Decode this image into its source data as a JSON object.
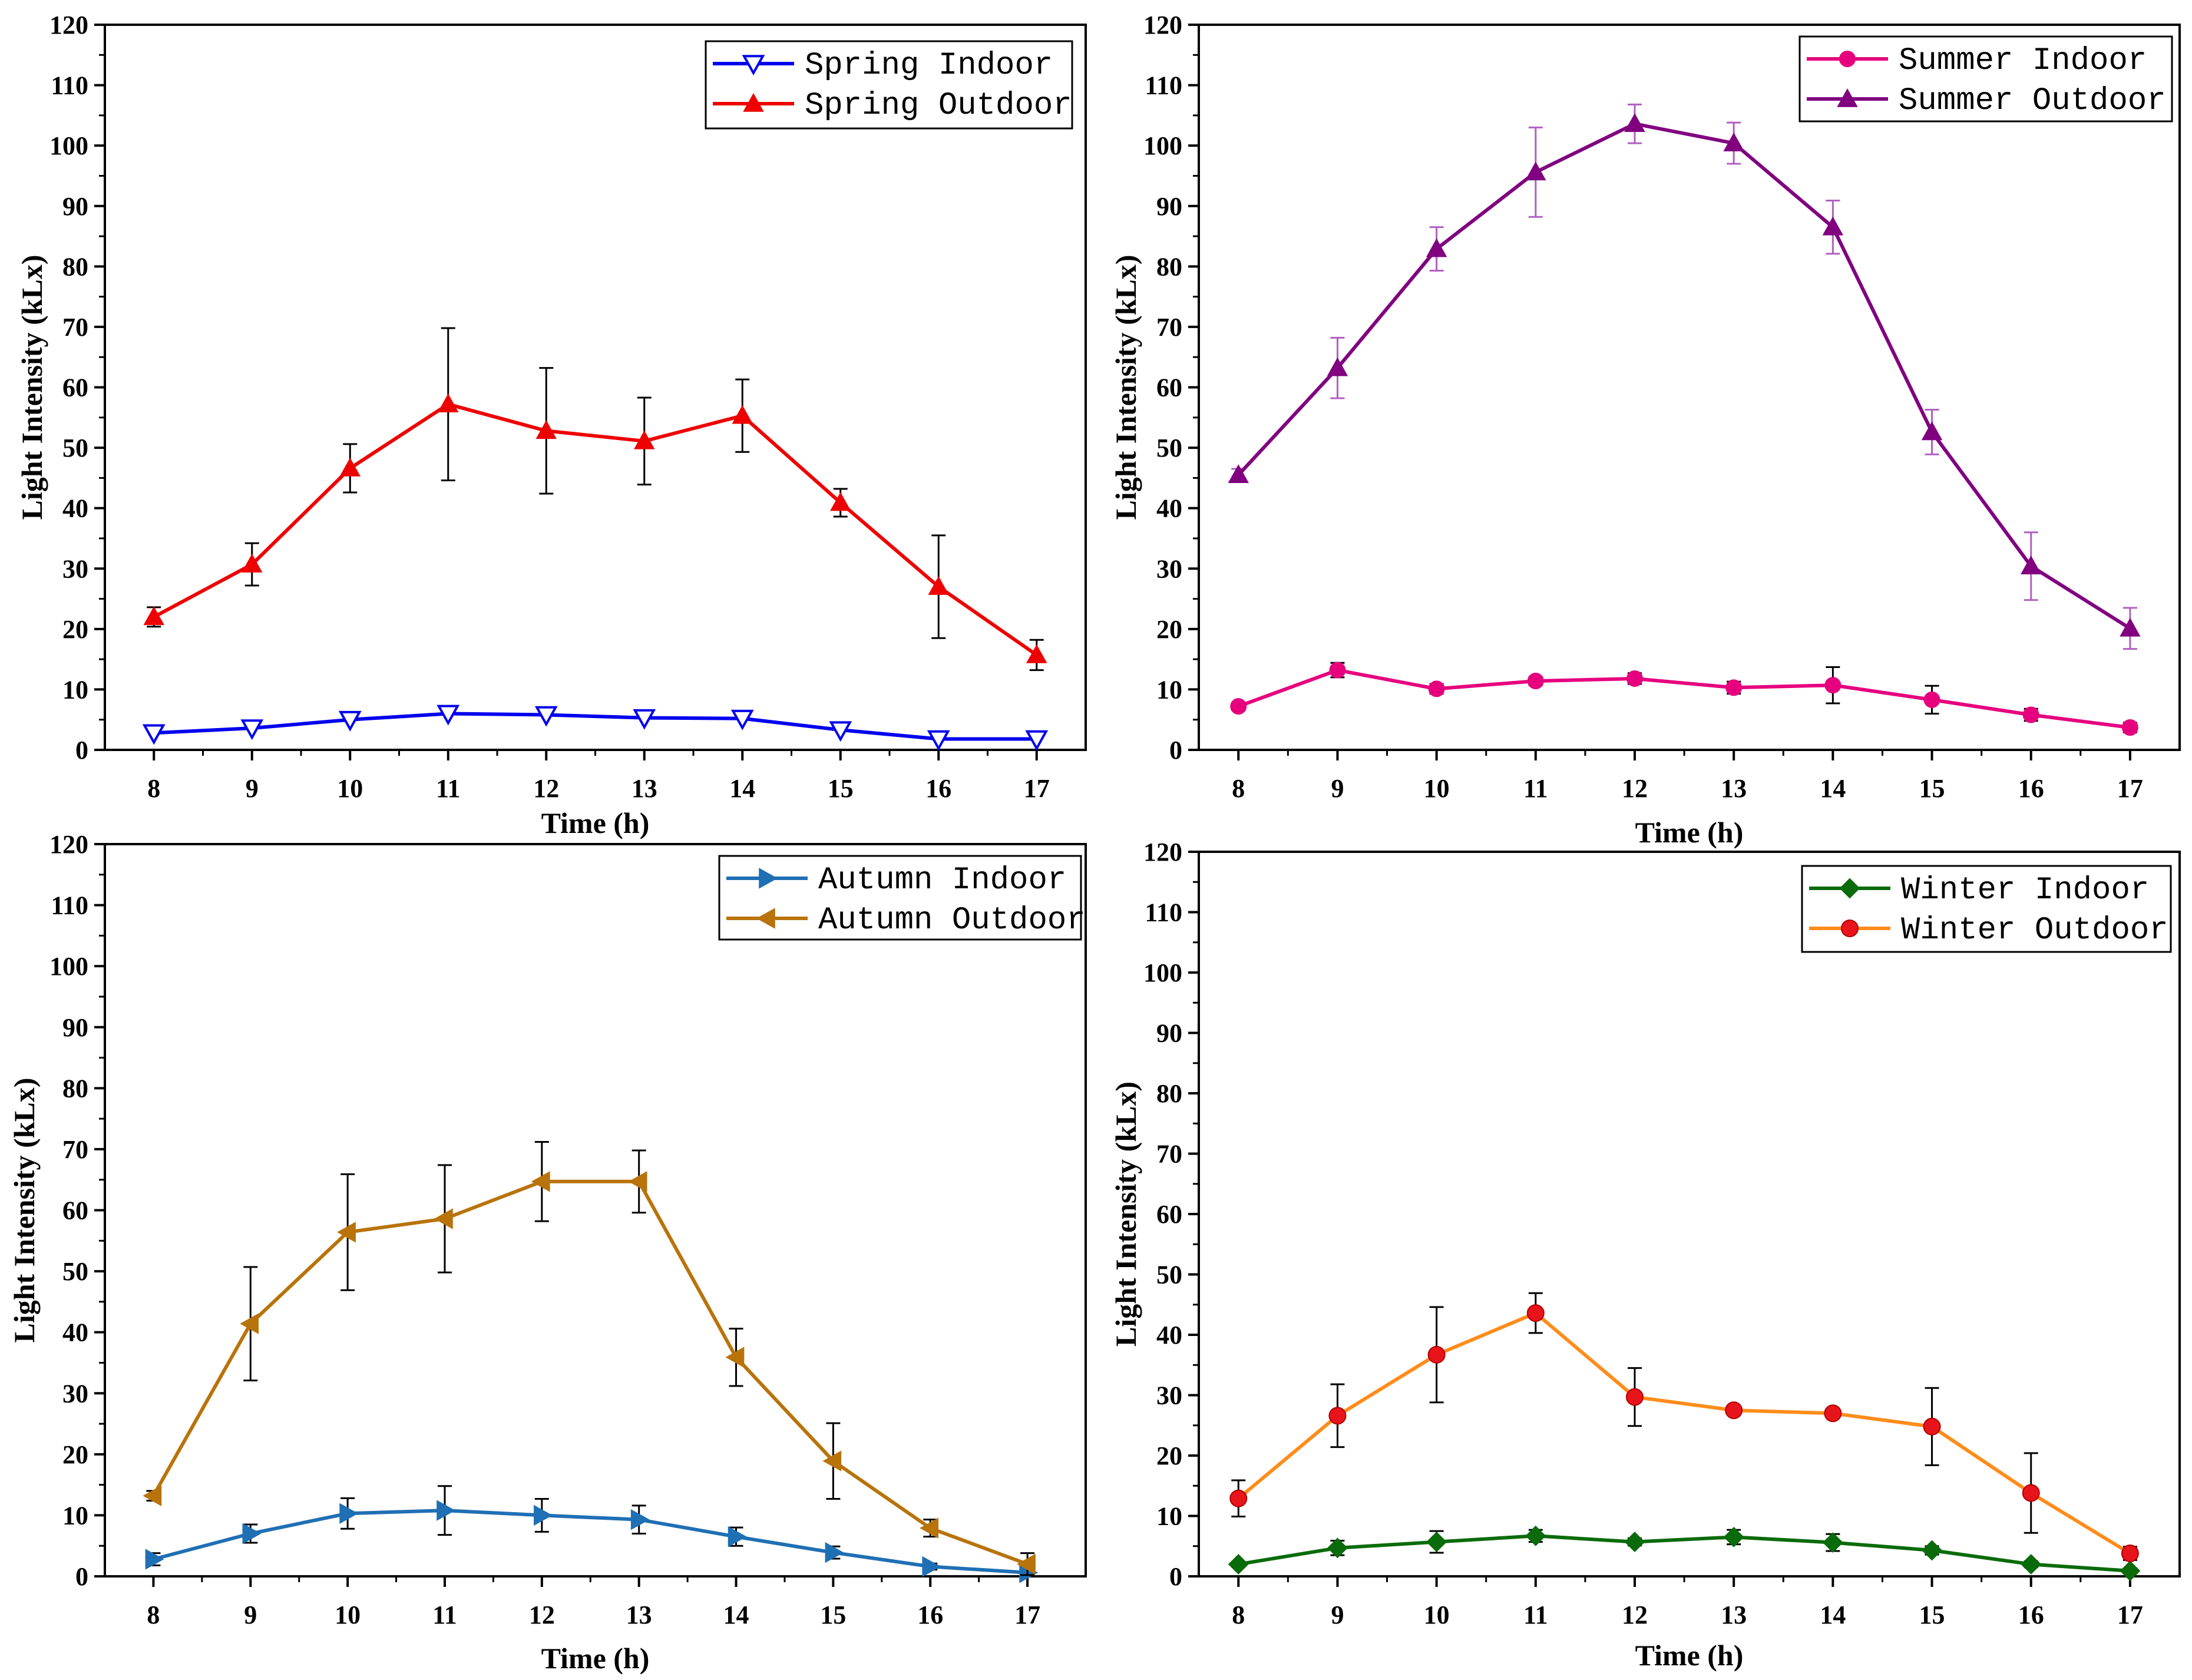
{
  "chart_data": [
    {
      "type": "line",
      "panel": "spring",
      "xlabel": "Time (h)",
      "ylabel": "Light Intensity (kLx)",
      "x": [
        8,
        9,
        10,
        11,
        12,
        13,
        14,
        15,
        16,
        17
      ],
      "xticks": [
        "8",
        "9",
        "10",
        "11",
        "12",
        "13",
        "14",
        "15",
        "16",
        "17"
      ],
      "ylim": [
        0,
        120
      ],
      "yticks": [
        "0",
        "10",
        "20",
        "30",
        "40",
        "50",
        "60",
        "70",
        "80",
        "90",
        "100",
        "110",
        "120"
      ],
      "legend_position": "top-right",
      "series": [
        {
          "name": "Spring Indoor",
          "color": "#0000ee",
          "marker": "triangle-down-open",
          "values": [
            2.8,
            3.6,
            5.0,
            6.0,
            5.8,
            5.3,
            5.2,
            3.3,
            1.8,
            1.8
          ],
          "errors": [
            0,
            0,
            0,
            0,
            0,
            0,
            0,
            0,
            0,
            0
          ]
        },
        {
          "name": "Spring Outdoor",
          "color": "#ee0000",
          "marker": "triangle-up",
          "values": [
            22.0,
            30.7,
            46.6,
            57.2,
            52.8,
            51.1,
            55.3,
            40.9,
            27.0,
            15.7
          ],
          "errors": [
            1.6,
            3.5,
            4.0,
            12.6,
            10.4,
            7.2,
            6.0,
            2.3,
            8.5,
            2.5
          ]
        }
      ]
    },
    {
      "type": "line",
      "panel": "summer",
      "xlabel": "Time (h)",
      "ylabel": "Light Intensity (kLx)",
      "x": [
        8,
        9,
        10,
        11,
        12,
        13,
        14,
        15,
        16,
        17
      ],
      "xticks": [
        "8",
        "9",
        "10",
        "11",
        "12",
        "13",
        "14",
        "15",
        "16",
        "17"
      ],
      "ylim": [
        0,
        120
      ],
      "yticks": [
        "0",
        "10",
        "20",
        "30",
        "40",
        "50",
        "60",
        "70",
        "80",
        "90",
        "100",
        "110",
        "120"
      ],
      "legend_position": "top-right",
      "series": [
        {
          "name": "Summer Indoor",
          "color": "#e6007e",
          "marker": "circle",
          "values": [
            7.2,
            13.2,
            10.1,
            11.4,
            11.8,
            10.3,
            10.7,
            8.3,
            5.8,
            3.7
          ],
          "errors": [
            0.6,
            1.2,
            0.8,
            0.7,
            0.9,
            1.0,
            3.0,
            2.3,
            1.0,
            0.8
          ]
        },
        {
          "name": "Summer Outdoor",
          "color": "#800080",
          "marker": "triangle-up",
          "values": [
            45.5,
            63.2,
            82.9,
            95.6,
            103.6,
            100.4,
            86.5,
            52.6,
            30.4,
            20.1
          ],
          "errors": [
            1.0,
            5.0,
            3.6,
            7.4,
            3.2,
            3.4,
            4.4,
            3.7,
            5.6,
            3.4
          ]
        }
      ]
    },
    {
      "type": "line",
      "panel": "autumn",
      "xlabel": "Time (h)",
      "ylabel": "Light Intensity (kLx)",
      "x": [
        8,
        9,
        10,
        11,
        12,
        13,
        14,
        15,
        16,
        17
      ],
      "xticks": [
        "8",
        "9",
        "10",
        "11",
        "12",
        "13",
        "14",
        "15",
        "16",
        "17"
      ],
      "ylim": [
        0,
        120
      ],
      "yticks": [
        "0",
        "10",
        "20",
        "30",
        "40",
        "50",
        "60",
        "70",
        "80",
        "90",
        "100",
        "110",
        "120"
      ],
      "legend_position": "top-right",
      "series": [
        {
          "name": "Autumn Indoor",
          "color": "#1f6fb4",
          "marker": "triangle-right",
          "values": [
            2.8,
            7.0,
            10.3,
            10.8,
            10.0,
            9.3,
            6.5,
            3.9,
            1.6,
            0.6
          ],
          "errors": [
            1.0,
            1.5,
            2.5,
            4.0,
            2.7,
            2.3,
            1.5,
            1.0,
            0.5,
            0.3
          ]
        },
        {
          "name": "Autumn Outdoor",
          "color": "#b8730a",
          "marker": "triangle-left",
          "values": [
            13.2,
            41.4,
            56.4,
            58.6,
            64.7,
            64.7,
            35.9,
            18.9,
            7.9,
            2.0
          ],
          "errors": [
            0.8,
            9.3,
            9.5,
            8.8,
            6.5,
            5.1,
            4.7,
            6.2,
            1.4,
            1.8
          ]
        }
      ]
    },
    {
      "type": "line",
      "panel": "winter",
      "xlabel": "Time (h)",
      "ylabel": "Light Intensity (kLx)",
      "x": [
        8,
        9,
        10,
        11,
        12,
        13,
        14,
        15,
        16,
        17
      ],
      "xticks": [
        "8",
        "9",
        "10",
        "11",
        "12",
        "13",
        "14",
        "15",
        "16",
        "17"
      ],
      "ylim": [
        0,
        120
      ],
      "yticks": [
        "0",
        "10",
        "20",
        "30",
        "40",
        "50",
        "60",
        "70",
        "80",
        "90",
        "100",
        "110",
        "120"
      ],
      "legend_position": "top-right",
      "series": [
        {
          "name": "Winter Indoor",
          "color": "#0a6b0a",
          "marker": "diamond",
          "values": [
            2.0,
            4.7,
            5.7,
            6.7,
            5.7,
            6.5,
            5.6,
            4.3,
            2.0,
            0.9
          ],
          "errors": [
            0.3,
            1.2,
            1.8,
            1.0,
            0.6,
            1.2,
            1.4,
            0.7,
            0.5,
            0.4
          ]
        },
        {
          "name": "Winter Outdoor",
          "color": "#ff8c1a",
          "marker": "circle-red",
          "values": [
            12.9,
            26.6,
            36.7,
            43.6,
            29.7,
            27.5,
            27.0,
            24.8,
            13.8,
            3.8
          ],
          "errors": [
            3.0,
            5.2,
            7.9,
            3.3,
            4.8,
            0.7,
            0.5,
            6.4,
            6.6,
            1.1
          ]
        }
      ]
    }
  ]
}
